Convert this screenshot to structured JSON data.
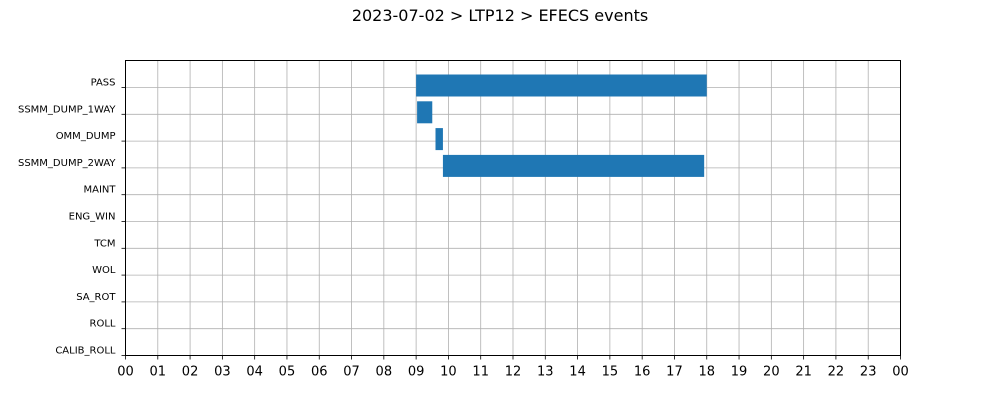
{
  "chart_data": {
    "type": "gantt",
    "title": "2023-07-02 > LTP12 > EFECS events",
    "xlabel": "",
    "ylabel": "",
    "xlim": [
      0,
      24
    ],
    "x_ticks": [
      "00",
      "01",
      "02",
      "03",
      "04",
      "05",
      "06",
      "07",
      "08",
      "09",
      "10",
      "11",
      "12",
      "13",
      "14",
      "15",
      "16",
      "17",
      "18",
      "19",
      "20",
      "21",
      "22",
      "23",
      "00"
    ],
    "categories": [
      "PASS",
      "SSMM_DUMP_1WAY",
      "OMM_DUMP",
      "SSMM_DUMP_2WAY",
      "MAINT",
      "ENG_WIN",
      "TCM",
      "WOL",
      "SA_ROT",
      "ROLL",
      "CALIB_ROLL"
    ],
    "bars": [
      {
        "category": "PASS",
        "start": 9.0,
        "end": 18.0
      },
      {
        "category": "SSMM_DUMP_1WAY",
        "start": 9.03,
        "end": 9.5
      },
      {
        "category": "OMM_DUMP",
        "start": 9.6,
        "end": 9.83
      },
      {
        "category": "SSMM_DUMP_2WAY",
        "start": 9.83,
        "end": 17.92
      }
    ],
    "bar_color": "#1f77b4",
    "grid": true
  }
}
